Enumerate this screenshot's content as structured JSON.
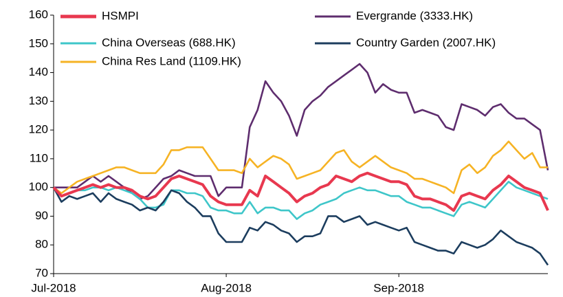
{
  "chart_data": {
    "type": "line",
    "categories": [
      "Jul-2018",
      null,
      null,
      null,
      null,
      null,
      null,
      null,
      null,
      null,
      null,
      null,
      null,
      null,
      null,
      null,
      null,
      null,
      null,
      null,
      null,
      null,
      "Aug-2018",
      null,
      null,
      null,
      null,
      null,
      null,
      null,
      null,
      null,
      null,
      null,
      null,
      null,
      null,
      null,
      null,
      null,
      null,
      null,
      null,
      null,
      "Sep-2018",
      null,
      null,
      null,
      null,
      null,
      null,
      null,
      null,
      null,
      null,
      null,
      null,
      null,
      null,
      null,
      null,
      null,
      null,
      null
    ],
    "series": [
      {
        "name": "HSMPI",
        "color": "#e8384f",
        "values": [
          100,
          97,
          98,
          99,
          100,
          101,
          100,
          101,
          100,
          100,
          99,
          97,
          96,
          97,
          100,
          103,
          104,
          103,
          102,
          101,
          97,
          95,
          94,
          94,
          94,
          99,
          97,
          104,
          102,
          100,
          98,
          95,
          97,
          98,
          100,
          101,
          104,
          103,
          102,
          104,
          105,
          104,
          103,
          102,
          102,
          101,
          97,
          96,
          96,
          95,
          94,
          92,
          97,
          98,
          97,
          96,
          99,
          101,
          104,
          102,
          100,
          99,
          98,
          92
        ]
      },
      {
        "name": "Evergrande (3333.HK)",
        "color": "#5e2d6e",
        "values": [
          100,
          100,
          100,
          100,
          102,
          104,
          102,
          104,
          102,
          100,
          98,
          96,
          97,
          100,
          103,
          104,
          106,
          105,
          104,
          104,
          104,
          97,
          100,
          100,
          100,
          121,
          127,
          137,
          133,
          130,
          125,
          118,
          127,
          130,
          132,
          135,
          137,
          139,
          141,
          143,
          140,
          133,
          136,
          134,
          133,
          133,
          126,
          127,
          126,
          125,
          121,
          120,
          129,
          128,
          127,
          125,
          128,
          129,
          126,
          124,
          124,
          122,
          120,
          106
        ]
      },
      {
        "name": "China Overseas (688.HK)",
        "color": "#3ec6c9",
        "values": [
          100,
          97,
          98,
          99,
          99,
          100,
          100,
          99,
          100,
          99,
          98,
          96,
          93,
          93,
          94,
          99,
          99,
          98,
          98,
          97,
          93,
          92,
          92,
          91,
          91,
          95,
          91,
          93,
          93,
          92,
          92,
          89,
          91,
          92,
          94,
          95,
          96,
          98,
          99,
          100,
          99,
          99,
          98,
          97,
          97,
          95,
          94,
          93,
          93,
          92,
          91,
          90,
          94,
          95,
          94,
          93,
          96,
          99,
          102,
          100,
          99,
          98,
          97,
          96
        ]
      },
      {
        "name": "Country Garden (2007.HK)",
        "color": "#1c3d5e",
        "values": [
          100,
          95,
          97,
          96,
          97,
          98,
          95,
          98,
          96,
          95,
          94,
          92,
          93,
          92,
          95,
          99,
          98,
          95,
          93,
          90,
          90,
          84,
          81,
          81,
          81,
          86,
          85,
          88,
          87,
          85,
          84,
          81,
          83,
          83,
          84,
          90,
          90,
          88,
          89,
          90,
          87,
          88,
          87,
          86,
          85,
          86,
          81,
          80,
          79,
          78,
          78,
          77,
          81,
          80,
          79,
          80,
          82,
          85,
          83,
          81,
          80,
          79,
          77,
          73
        ]
      },
      {
        "name": "China Res Land (1109.HK)",
        "color": "#f6b324",
        "values": [
          100,
          98,
          100,
          102,
          103,
          104,
          105,
          106,
          107,
          107,
          106,
          105,
          105,
          105,
          108,
          113,
          113,
          114,
          114,
          114,
          110,
          106,
          106,
          106,
          105,
          110,
          107,
          109,
          111,
          110,
          108,
          103,
          104,
          105,
          106,
          109,
          112,
          113,
          109,
          107,
          109,
          111,
          109,
          107,
          106,
          105,
          103,
          103,
          102,
          101,
          100,
          98,
          106,
          108,
          105,
          107,
          111,
          113,
          116,
          113,
          110,
          112,
          107,
          107
        ]
      }
    ],
    "ylim": [
      70,
      160
    ],
    "yticks": [
      70,
      80,
      90,
      100,
      110,
      120,
      130,
      140,
      150,
      160
    ]
  }
}
